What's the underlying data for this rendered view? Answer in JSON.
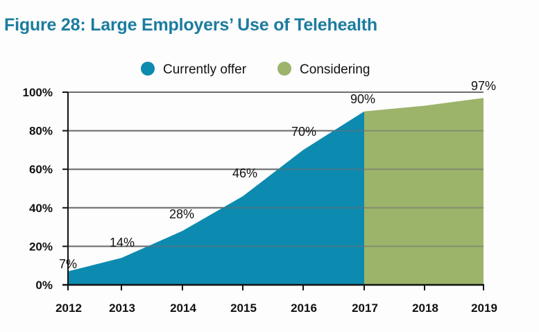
{
  "title": "Figure 28: Large Employers’ Use of Telehealth",
  "chart_data": {
    "type": "area",
    "title": "Figure 28: Large Employers’ Use of Telehealth",
    "xlabel": "",
    "ylabel": "",
    "x": [
      "2012",
      "2013",
      "2014",
      "2015",
      "2016",
      "2017",
      "2018",
      "2019"
    ],
    "ylim": [
      0,
      100
    ],
    "yticks": [
      0,
      20,
      40,
      60,
      80,
      100
    ],
    "ytick_labels": [
      "0%",
      "20%",
      "40%",
      "60%",
      "80%",
      "100%"
    ],
    "grid": true,
    "legend_position": "top-center",
    "series": [
      {
        "name": "Currently offer",
        "color": "#0d8ab0",
        "x": [
          "2012",
          "2013",
          "2014",
          "2015",
          "2016",
          "2017"
        ],
        "values": [
          7,
          14,
          28,
          46,
          70,
          90
        ],
        "labels": [
          "7%",
          "14%",
          "28%",
          "46%",
          "70%",
          "90%"
        ]
      },
      {
        "name": "Considering",
        "color": "#9cb46a",
        "x": [
          "2017",
          "2018",
          "2019"
        ],
        "values": [
          90,
          93,
          97
        ],
        "labels": [
          "",
          "",
          "97%"
        ]
      }
    ]
  }
}
